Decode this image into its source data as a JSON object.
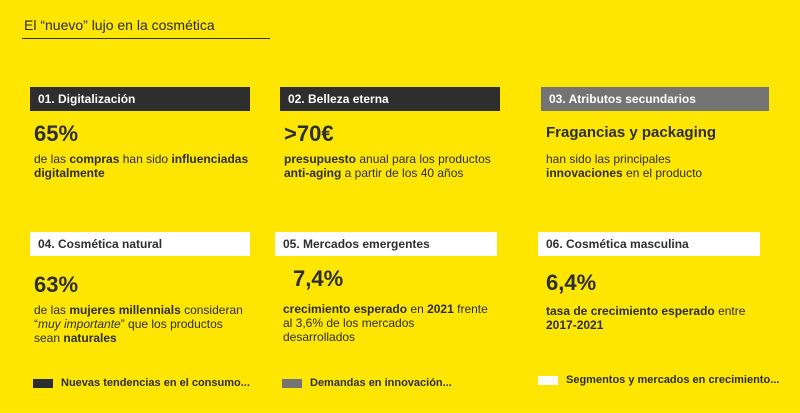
{
  "title": "El “nuevo” lujo en la cosmética",
  "colors": {
    "background": "#FFE600",
    "black": "#2e2e2e",
    "grey": "#747474",
    "white": "#ffffff"
  },
  "cards": [
    {
      "header": "01. Digitalización",
      "stat": "65%",
      "desc": {
        "p1": "de las ",
        "b1": "compras",
        "p2": " han sido ",
        "b2": "influenciadas digitalmente"
      }
    },
    {
      "header": "02. Belleza eterna",
      "stat": ">70€",
      "desc": {
        "b1": "presupuesto",
        "p1": " anual para los productos ",
        "b2": "anti-aging",
        "p2": " a partir de los 40 años"
      }
    },
    {
      "header": "03. Atributos secundarios",
      "stat": "Fragancias y packaging",
      "desc": {
        "p1": "han sido las principales ",
        "b1": "innovaciones",
        "p2": " en el producto"
      }
    },
    {
      "header": "04. Cosmética natural",
      "stat": "63%",
      "desc": {
        "p1": "de las ",
        "b1": "mujeres millennials",
        "p2": " consideran “",
        "i1": "muy importante",
        "p3": "” que los productos sean ",
        "b2": "naturales"
      }
    },
    {
      "header": "05. Mercados emergentes",
      "stat": "7,4%",
      "desc": {
        "b1": "crecimiento esperado",
        "p1": " en ",
        "b2": "2021",
        "p2": " frente al 3,6% de los mercados desarrollados"
      }
    },
    {
      "header": "06. Cosmética masculina",
      "stat": "6,4%",
      "desc": {
        "b1": "tasa de crecimiento esperado",
        "p1": " entre ",
        "b2": "2017-2021"
      }
    }
  ],
  "legend": [
    {
      "label": "Nuevas tendencias en el consumo...",
      "color": "#2e2e2e"
    },
    {
      "label": "Demandas en innovación...",
      "color": "#747474"
    },
    {
      "label": "Segmentos y mercados en crecimiento...",
      "color": "#ffffff"
    }
  ]
}
